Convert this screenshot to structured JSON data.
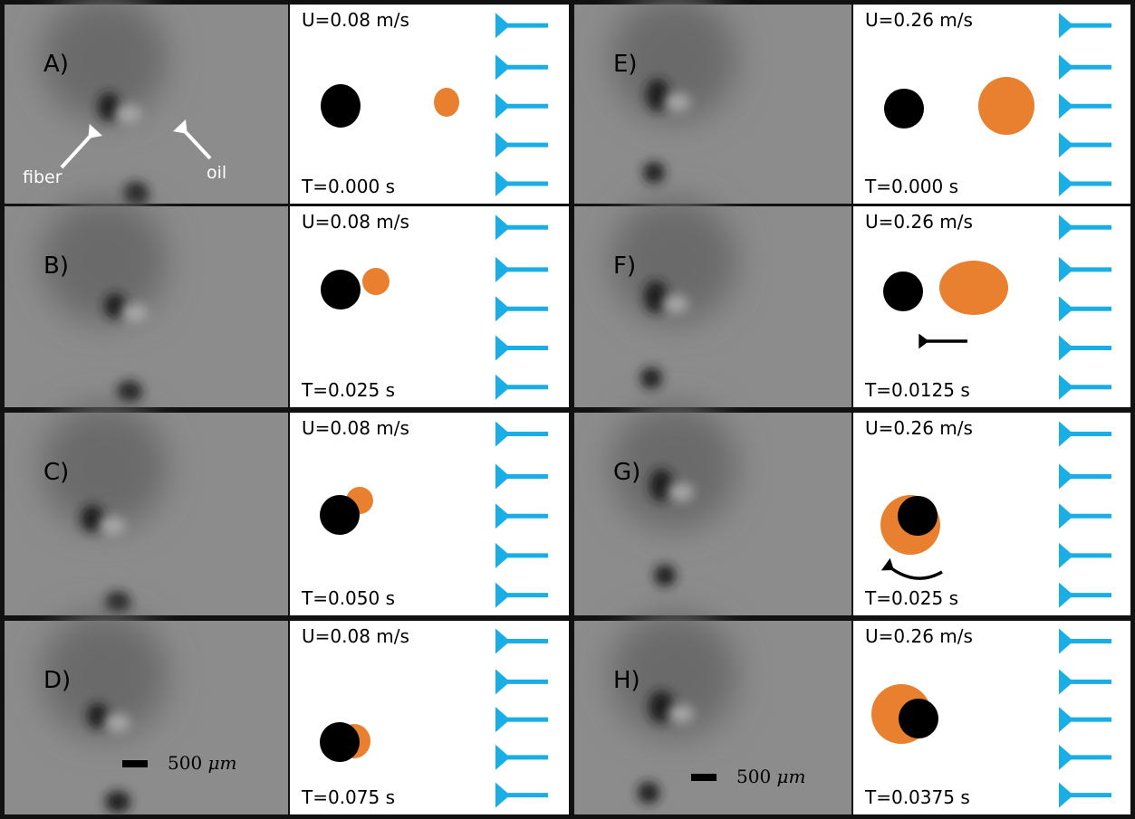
{
  "panels": [
    {
      "label": "A)",
      "velocity": "U=0.08 m/s",
      "time": "T=0.000 s"
    },
    {
      "label": "B)",
      "velocity": "U=0.08 m/s",
      "time": "T=0.025 s"
    },
    {
      "label": "C)",
      "velocity": "U=0.08 m/s",
      "time": "T=0.050 s"
    },
    {
      "label": "D)",
      "velocity": "U=0.08 m/s",
      "time": "T=0.075 s"
    },
    {
      "label": "E)",
      "velocity": "U=0.26 m/s",
      "time": "T=0.000 s"
    },
    {
      "label": "F)",
      "velocity": "U=0.26 m/s",
      "time": "T=0.0125 s"
    },
    {
      "label": "G)",
      "velocity": "U=0.26 m/s",
      "time": "T=0.025 s"
    },
    {
      "label": "H)",
      "velocity": "U=0.26 m/s",
      "time": "T=0.0375 s"
    }
  ],
  "annotations": {
    "fiber": "fiber",
    "oil": "oil"
  },
  "scale_bar": {
    "value": "500",
    "unit": "μm"
  }
}
